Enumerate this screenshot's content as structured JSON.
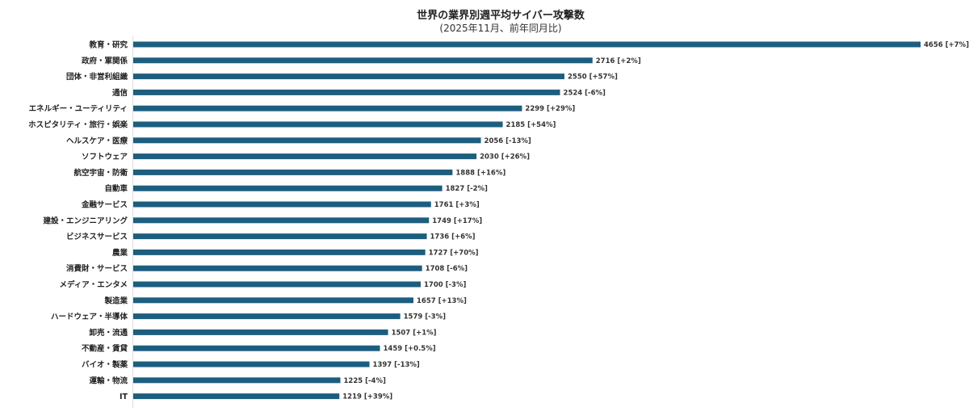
{
  "chart_data": {
    "type": "bar",
    "orientation": "horizontal",
    "title": "世界の業界別週平均サイバー攻撃数",
    "subtitle": "(2025年11月、前年同月比)",
    "bar_color": "#1d5e7e",
    "grid": false,
    "categories": [
      "教育・研究",
      "政府・軍関係",
      "団体・非営利組織",
      "通信",
      "エネルギー・ユーティリティ",
      "ホスピタリティ・旅行・娯楽",
      "ヘルスケア・医療",
      "ソフトウェア",
      "航空宇宙・防衛",
      "自動車",
      "金融サービス",
      "建設・エンジニアリング",
      "ビジネスサービス",
      "農業",
      "消費財・サービス",
      "メディア・エンタメ",
      "製造業",
      "ハードウェア・半導体",
      "卸売・流通",
      "不動産・賃貸",
      "バイオ・製薬",
      "運輸・物流",
      "IT"
    ],
    "values": [
      4656,
      2716,
      2550,
      2524,
      2299,
      2185,
      2056,
      2030,
      1888,
      1827,
      1761,
      1749,
      1736,
      1727,
      1708,
      1700,
      1657,
      1579,
      1507,
      1459,
      1397,
      1225,
      1219
    ],
    "changes": [
      "+7%",
      "+2%",
      "+57%",
      "-6%",
      "+29%",
      "+54%",
      "-13%",
      "+26%",
      "+16%",
      "-2%",
      "+3%",
      "+17%",
      "+6%",
      "+70%",
      "-6%",
      "-3%",
      "+13%",
      "-3%",
      "+1%",
      "+0.5%",
      "-13%",
      "-4%",
      "+39%"
    ],
    "xlim": [
      0,
      4656
    ]
  }
}
